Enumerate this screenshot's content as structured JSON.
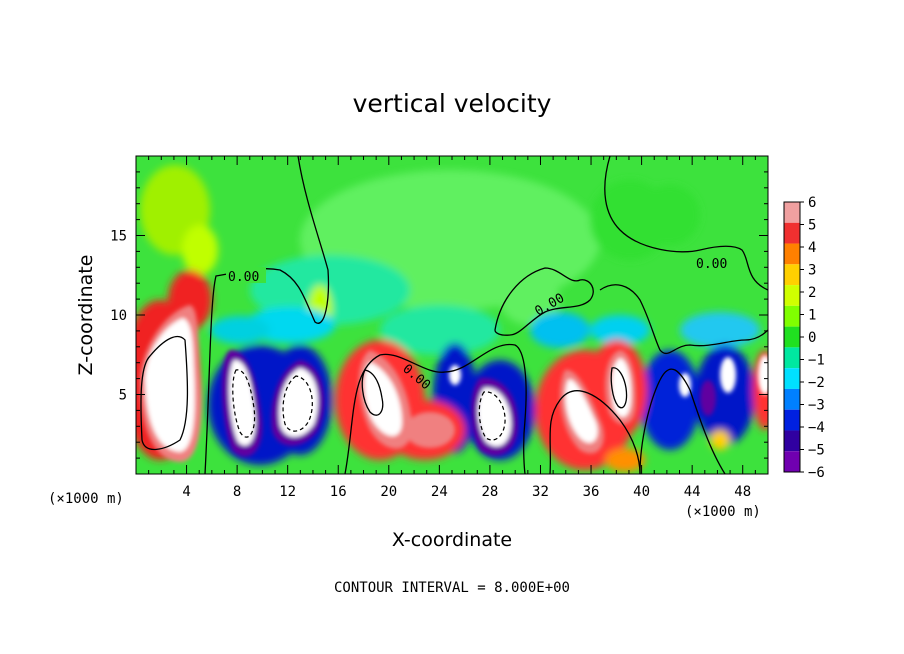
{
  "chart_data": {
    "type": "heatmap",
    "title": "vertical velocity",
    "xlabel": "X-coordinate",
    "ylabel": "Z-coordinate",
    "x_unit_label": "(×1000 m)",
    "x_unit_label_right": "(×1000 m)",
    "xlim": [
      0,
      50
    ],
    "ylim": [
      0,
      20
    ],
    "x_ticks": [
      4,
      8,
      12,
      16,
      20,
      24,
      28,
      32,
      36,
      40,
      44,
      48
    ],
    "y_ticks": [
      5,
      10,
      15
    ],
    "footer": "CONTOUR INTERVAL = 8.000E+00",
    "contour_labels": [
      "0.00",
      "0.00",
      "0.00",
      "0.00"
    ],
    "colorbar": {
      "ticks": [
        "6",
        "5",
        "4",
        "3",
        "2",
        "1",
        "0",
        "−1",
        "−2",
        "−3",
        "−4",
        "−5",
        "−6"
      ],
      "colors": [
        "#f0a0a0",
        "#f03030",
        "#ff8000",
        "#ffd000",
        "#d0ff00",
        "#80ff00",
        "#20e020",
        "#00e8a0",
        "#00e0ff",
        "#0080ff",
        "#0020e0",
        "#3000a0",
        "#7000b0"
      ]
    },
    "features": [
      {
        "x": 1.8,
        "z": 5.8,
        "value": 6.5
      },
      {
        "x": 3.5,
        "z": 3.0,
        "value": 6.5
      },
      {
        "x": 9.5,
        "z": 5.5,
        "value": -6.5
      },
      {
        "x": 13.5,
        "z": 5.2,
        "value": -6.5
      },
      {
        "x": 19.5,
        "z": 5.5,
        "value": 6.5
      },
      {
        "x": 23.5,
        "z": 3.0,
        "value": 5.0
      },
      {
        "x": 26,
        "z": 5.3,
        "value": -6.0
      },
      {
        "x": 29,
        "z": 3.5,
        "value": -6.5
      },
      {
        "x": 34.5,
        "z": 3.0,
        "value": 6.5
      },
      {
        "x": 38.5,
        "z": 5.5,
        "value": 6.5
      },
      {
        "x": 42.5,
        "z": 5.0,
        "value": -5.0
      },
      {
        "x": 45.5,
        "z": 5.0,
        "value": -6.0
      },
      {
        "x": 48,
        "z": 5.5,
        "value": -6.5
      },
      {
        "x": 2.8,
        "z": 11.5,
        "value": 4.0
      },
      {
        "x": 3.0,
        "z": 15.0,
        "value": 1.2
      },
      {
        "x": 14.5,
        "z": 9.5,
        "value": 1.0
      }
    ]
  }
}
